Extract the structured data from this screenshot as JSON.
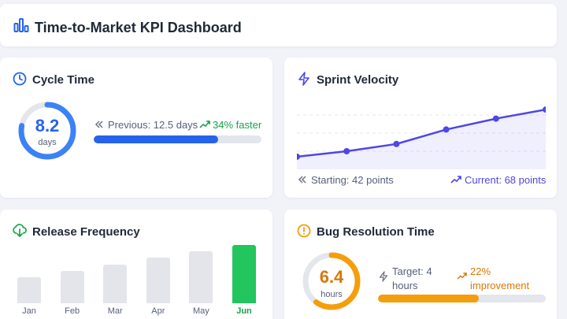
{
  "header": {
    "title": "Time-to-Market KPI Dashboard",
    "icon": "bar-chart-icon"
  },
  "cycle_time": {
    "title": "Cycle Time",
    "value": "8.2",
    "unit": "days",
    "previous": "Previous: 12.5 days",
    "change": "34% faster",
    "progress_fraction": 0.74,
    "ring_fraction": 0.78,
    "color": "#2563eb"
  },
  "sprint_velocity": {
    "title": "Sprint Velocity",
    "starting": "Starting: 42 points",
    "current": "Current: 68 points",
    "color": "#4f46e5"
  },
  "release_frequency": {
    "title": "Release Frequency",
    "highlight_color": "#22c55e",
    "bar_color": "#e4e5ea"
  },
  "bug_resolution": {
    "title": "Bug Resolution Time",
    "value": "6.4",
    "unit": "hours",
    "target": "Target: 4 hours",
    "change": "22% improvement",
    "progress_fraction": 0.6,
    "ring_fraction": 0.6,
    "color": "#f59e0b"
  },
  "chart_data": [
    {
      "type": "line",
      "title": "Sprint Velocity",
      "x": [
        1,
        2,
        3,
        4,
        5,
        6
      ],
      "values": [
        42,
        45,
        49,
        57,
        63,
        68
      ],
      "ylim": [
        35,
        75
      ],
      "grid": true
    },
    {
      "type": "bar",
      "title": "Release Frequency",
      "categories": [
        "Jan",
        "Feb",
        "Mar",
        "Apr",
        "May",
        "Jun"
      ],
      "values": [
        4,
        5,
        6,
        7,
        8,
        9
      ],
      "ylim": [
        0,
        9
      ],
      "highlight": "Jun"
    }
  ]
}
